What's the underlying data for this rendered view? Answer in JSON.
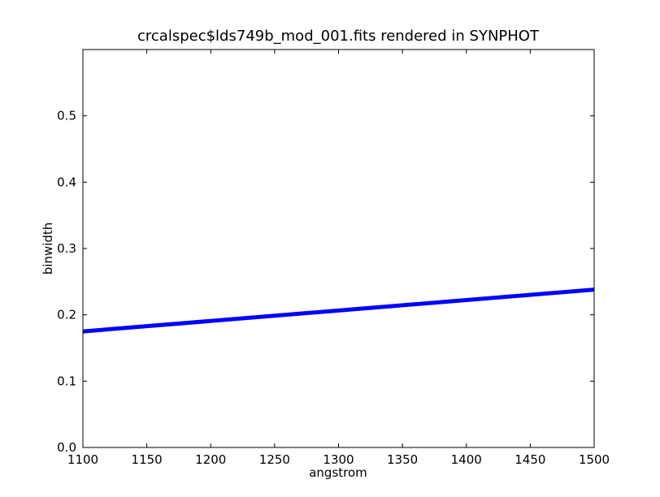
{
  "chart_data": {
    "type": "line",
    "title": "crcalspec$lds749b_mod_001.fits rendered in SYNPHOT",
    "xlabel": "angstrom",
    "ylabel": "binwidth",
    "xlim": [
      1100,
      1500
    ],
    "ylim": [
      0.0,
      0.6
    ],
    "xticks": [
      1100,
      1150,
      1200,
      1250,
      1300,
      1350,
      1400,
      1450,
      1500
    ],
    "xtick_labels": [
      "1100",
      "1150",
      "1200",
      "1250",
      "1300",
      "1350",
      "1400",
      "1450",
      "1500"
    ],
    "yticks": [
      0.0,
      0.1,
      0.2,
      0.3,
      0.4,
      0.5
    ],
    "ytick_labels": [
      "0.0",
      "0.1",
      "0.2",
      "0.3",
      "0.4",
      "0.5"
    ],
    "grid": false,
    "series": [
      {
        "color": "#0000ff",
        "x": [
          1100,
          1500
        ],
        "y": [
          0.175,
          0.238
        ]
      }
    ]
  }
}
